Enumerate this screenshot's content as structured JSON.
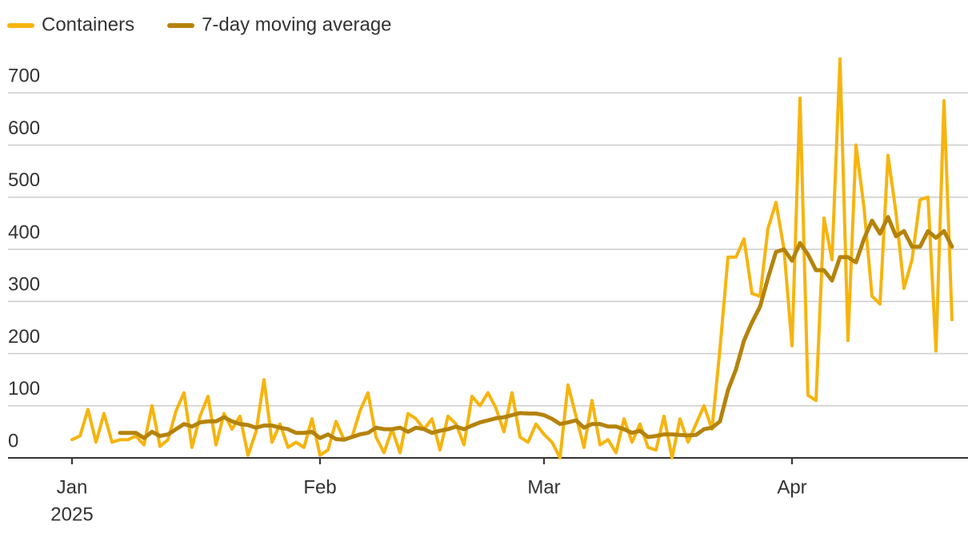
{
  "chart_data": {
    "type": "line",
    "x": [
      0,
      1,
      2,
      3,
      4,
      5,
      6,
      7,
      8,
      9,
      10,
      11,
      12,
      13,
      14,
      15,
      16,
      17,
      18,
      19,
      20,
      21,
      22,
      23,
      24,
      25,
      26,
      27,
      28,
      29,
      30,
      31,
      32,
      33,
      34,
      35,
      36,
      37,
      38,
      39,
      40,
      41,
      42,
      43,
      44,
      45,
      46,
      47,
      48,
      49,
      50,
      51,
      52,
      53,
      54,
      55,
      56,
      57,
      58,
      59,
      60,
      61,
      62,
      63,
      64,
      65,
      66,
      67,
      68,
      69,
      70,
      71,
      72,
      73,
      74,
      75,
      76,
      77,
      78,
      79,
      80,
      81,
      82,
      83,
      84,
      85,
      86,
      87,
      88,
      89,
      90,
      91,
      92,
      93,
      94,
      95,
      96,
      97,
      98,
      99,
      100,
      101,
      102,
      103,
      104,
      105,
      106,
      107,
      108,
      109,
      110
    ],
    "series": [
      {
        "name": "Containers",
        "color": "#f6b40e",
        "values": [
          35,
          42,
          93,
          30,
          85,
          30,
          35,
          35,
          42,
          25,
          100,
          22,
          35,
          90,
          125,
          20,
          80,
          118,
          25,
          85,
          55,
          80,
          5,
          50,
          150,
          30,
          65,
          20,
          30,
          20,
          75,
          5,
          15,
          70,
          35,
          40,
          90,
          125,
          40,
          10,
          55,
          10,
          85,
          75,
          55,
          75,
          15,
          80,
          65,
          25,
          118,
          100,
          125,
          95,
          50,
          125,
          40,
          30,
          65,
          45,
          30,
          0,
          140,
          80,
          20,
          110,
          25,
          35,
          10,
          75,
          30,
          65,
          20,
          15,
          80,
          0,
          75,
          30,
          65,
          100,
          55,
          210,
          385,
          385,
          420,
          315,
          310,
          440,
          490,
          400,
          215,
          690,
          120,
          110,
          460,
          380,
          765,
          225,
          600,
          480,
          310,
          295,
          580,
          470,
          325,
          380,
          495,
          500,
          205,
          685,
          265
        ]
      },
      {
        "name": "7-day moving average",
        "color": "#b5830b",
        "values": [
          null,
          null,
          null,
          null,
          null,
          null,
          48,
          48,
          48,
          38,
          50,
          42,
          45,
          55,
          65,
          60,
          68,
          70,
          70,
          78,
          70,
          65,
          63,
          58,
          62,
          62,
          58,
          55,
          48,
          48,
          50,
          38,
          45,
          36,
          35,
          40,
          45,
          48,
          58,
          55,
          55,
          58,
          50,
          58,
          55,
          48,
          52,
          55,
          60,
          55,
          62,
          68,
          72,
          76,
          78,
          82,
          86,
          85,
          85,
          82,
          75,
          65,
          68,
          72,
          58,
          65,
          65,
          60,
          60,
          55,
          48,
          52,
          40,
          42,
          45,
          45,
          44,
          43,
          44,
          55,
          58,
          70,
          130,
          170,
          225,
          260,
          290,
          345,
          395,
          400,
          378,
          412,
          390,
          360,
          360,
          340,
          385,
          385,
          375,
          420,
          455,
          430,
          462,
          425,
          435,
          405,
          405,
          435,
          422,
          435,
          405
        ]
      }
    ],
    "xlim": [
      -8,
      112
    ],
    "xticks": [
      {
        "value": 0,
        "label": "Jan"
      },
      {
        "value": 31,
        "label": "Feb"
      },
      {
        "value": 59,
        "label": "Mar"
      },
      {
        "value": 90,
        "label": "Apr"
      }
    ],
    "x_year_label": "2025",
    "ylim": [
      0,
      780
    ],
    "yticks": [
      0,
      100,
      200,
      300,
      400,
      500,
      600,
      700
    ],
    "grid": true,
    "legend": "top-left"
  }
}
